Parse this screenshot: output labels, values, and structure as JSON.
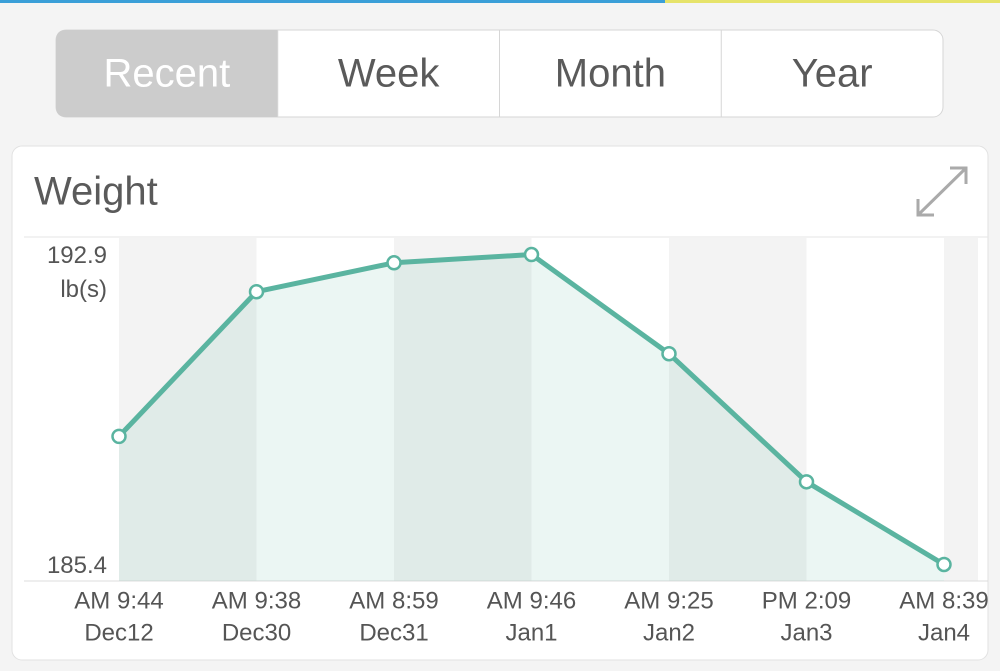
{
  "tabs": [
    "Recent",
    "Week",
    "Month",
    "Year"
  ],
  "selected_tab": 0,
  "chart_data": {
    "type": "line",
    "title": "Weight",
    "y_unit": "lb(s)",
    "times": [
      "AM 9:44",
      "AM 9:38",
      "AM 8:59",
      "AM 9:46",
      "AM 9:25",
      "PM 2:09",
      "AM 8:39"
    ],
    "categories": [
      "Dec12",
      "Dec30",
      "Dec31",
      "Jan1",
      "Jan2",
      "Jan3",
      "Jan4"
    ],
    "values": [
      188.5,
      192.0,
      192.7,
      192.9,
      190.5,
      187.4,
      185.4
    ],
    "color": "#5ab4a0",
    "ylim": [
      185.0,
      193.3
    ],
    "yticks": [
      185.4,
      192.9
    ],
    "grid": false
  }
}
